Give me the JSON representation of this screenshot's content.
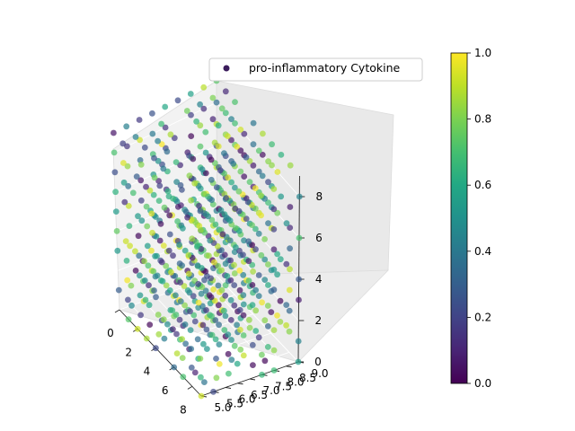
{
  "chart_data": {
    "type": "scatter3d",
    "title": "",
    "legend": {
      "placement": "top-right",
      "entries": [
        "pro-inflammatory Cytokine"
      ]
    },
    "series": [
      {
        "name": "pro-inflammatory Cytokine",
        "marker": "circle",
        "alpha": 0.7,
        "grid_x": [
          0,
          1,
          2,
          3,
          4,
          5,
          6,
          7,
          8,
          9
        ],
        "grid_y": [
          5.0,
          5.5,
          6.0,
          6.5,
          7.0,
          7.5,
          8.0,
          8.5,
          9.0
        ],
        "grid_z": [
          0,
          1,
          2,
          3,
          4,
          5,
          6,
          7,
          8,
          9
        ],
        "color_value_range": [
          0.0,
          1.0
        ]
      }
    ],
    "axes": {
      "x": {
        "range": [
          0,
          9
        ],
        "ticks": [
          0,
          2,
          4,
          6,
          8
        ],
        "tick_labels": [
          "0",
          "2",
          "4",
          "6",
          "8"
        ]
      },
      "y": {
        "range": [
          5.0,
          9.0
        ],
        "ticks": [
          5.0,
          5.5,
          6.0,
          6.5,
          7.0,
          7.5,
          8.0,
          8.5,
          9.0
        ],
        "tick_labels": [
          "5.0",
          "5.5",
          "6.0",
          "6.5",
          "7.0",
          "7.5",
          "8.0",
          "8.5",
          "9.0"
        ]
      },
      "z": {
        "range": [
          0,
          9
        ],
        "ticks": [
          0,
          2,
          4,
          6,
          8
        ],
        "tick_labels": [
          "0",
          "2",
          "4",
          "6",
          "8"
        ]
      }
    },
    "grid": true,
    "colorbar": {
      "colormap": "viridis",
      "range": [
        0.0,
        1.0
      ],
      "ticks": [
        0.0,
        0.2,
        0.4,
        0.6,
        0.8,
        1.0
      ],
      "tick_labels": [
        "0.0",
        "0.2",
        "0.4",
        "0.6",
        "0.8",
        "1.0"
      ]
    }
  }
}
